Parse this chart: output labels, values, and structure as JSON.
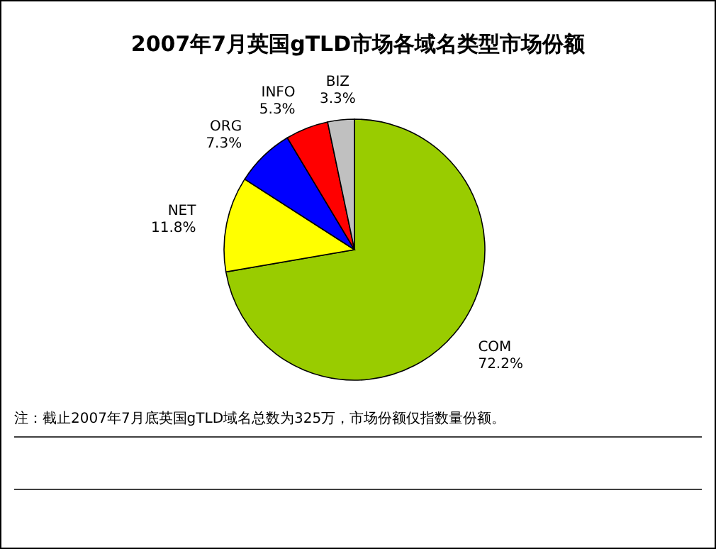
{
  "chart_data": {
    "type": "pie",
    "title": "2007年7月英国gTLD市场各域名类型市场份额",
    "categories": [
      "COM",
      "NET",
      "ORG",
      "INFO",
      "BIZ"
    ],
    "values": [
      72.2,
      11.8,
      7.3,
      5.3,
      3.3
    ],
    "value_labels": [
      "72.2%",
      "11.8%",
      "7.3%",
      "5.3%",
      "3.3%"
    ],
    "colors": [
      "#99cc00",
      "#ffff00",
      "#0000ff",
      "#ff0000",
      "#c0c0c0"
    ],
    "annotations": [
      "注：截止2007年7月底英国gTLD域名总数为325万，市场份额仅指数量份额。"
    ]
  }
}
